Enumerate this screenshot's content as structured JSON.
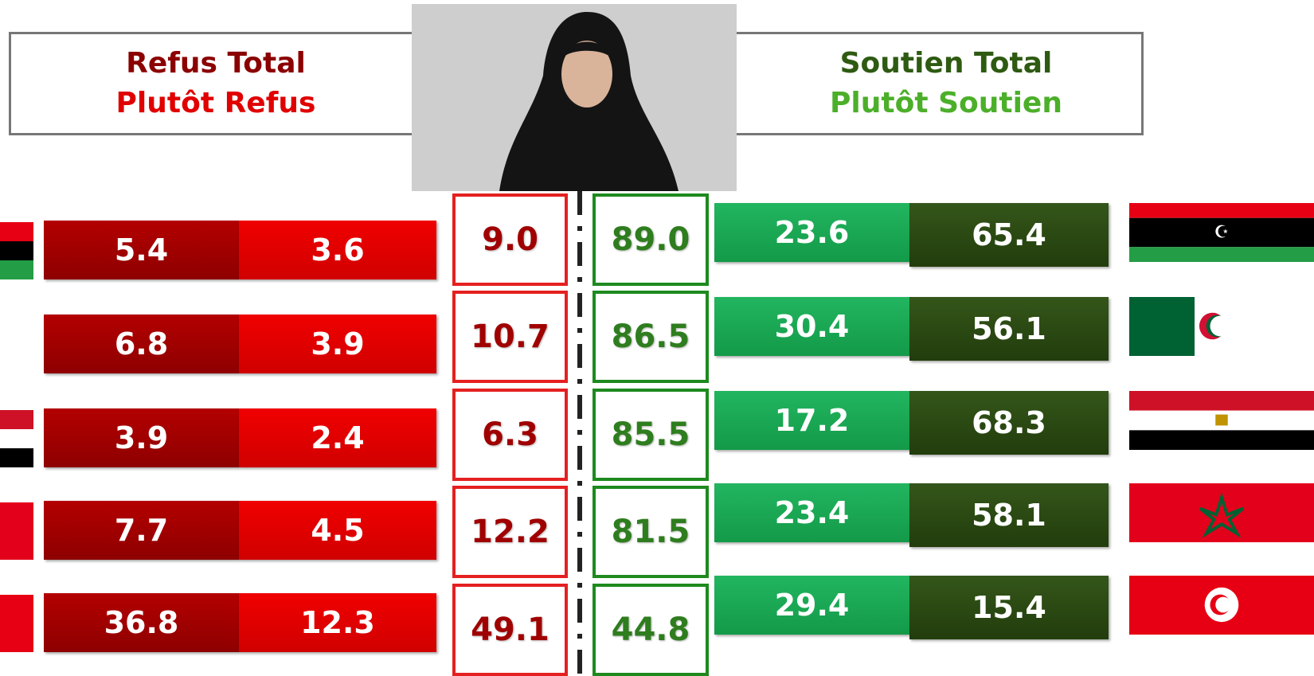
{
  "header": {
    "left_title": "Refus Total",
    "left_subtitle": "Plutôt Refus",
    "right_title": "Soutien Total",
    "right_subtitle": "Plutôt Soutien"
  },
  "rows": [
    {
      "refus_total": "5.4",
      "plutot_refus": "3.6",
      "total_refus": "9.0",
      "total_soutien": "89.0",
      "plutot_soutien": "23.6",
      "soutien_total": "65.4"
    },
    {
      "refus_total": "6.8",
      "plutot_refus": "3.9",
      "total_refus": "10.7",
      "total_soutien": "86.5",
      "plutot_soutien": "30.4",
      "soutien_total": "56.1"
    },
    {
      "refus_total": "3.9",
      "plutot_refus": "2.4",
      "total_refus": "6.3",
      "total_soutien": "85.5",
      "plutot_soutien": "17.2",
      "soutien_total": "68.3"
    },
    {
      "refus_total": "7.7",
      "plutot_refus": "4.5",
      "total_refus": "12.2",
      "total_soutien": "81.5",
      "plutot_soutien": "23.4",
      "soutien_total": "58.1"
    },
    {
      "refus_total": "36.8",
      "plutot_refus": "12.3",
      "total_refus": "49.1",
      "total_soutien": "44.8",
      "plutot_soutien": "29.4",
      "soutien_total": "15.4"
    }
  ]
}
